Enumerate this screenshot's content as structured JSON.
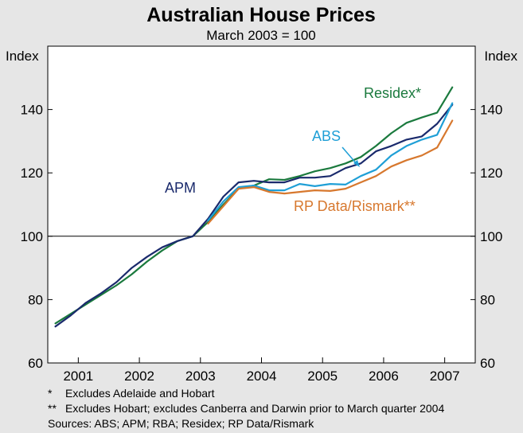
{
  "chart_data": {
    "type": "line",
    "title": "Australian House Prices",
    "subtitle": "March 2003 = 100",
    "ylabel_left": "Index",
    "ylabel_right": "Index",
    "ylim": [
      60,
      160
    ],
    "yticks": [
      60,
      80,
      100,
      120,
      140
    ],
    "xlim": [
      2000.5,
      2007.5
    ],
    "x_tick_labels": [
      "2001",
      "2002",
      "2003",
      "2004",
      "2005",
      "2006",
      "2007"
    ],
    "reference_line": 100,
    "series": [
      {
        "name": "Residex*",
        "color": "#1b7a3e",
        "x": [
          2000.625,
          2000.875,
          2001.125,
          2001.375,
          2001.625,
          2001.875,
          2002.125,
          2002.375,
          2002.625,
          2002.875,
          2003.125,
          2003.375,
          2003.625,
          2003.875,
          2004.125,
          2004.375,
          2004.625,
          2004.875,
          2005.125,
          2005.375,
          2005.625,
          2005.875,
          2006.125,
          2006.375,
          2006.625,
          2006.875,
          2007.125
        ],
        "values": [
          72.5,
          75.5,
          78.5,
          81.5,
          84.5,
          88.0,
          92.0,
          95.5,
          98.5,
          100.0,
          104.5,
          110.0,
          115.0,
          116.0,
          118.0,
          117.8,
          119.0,
          120.5,
          121.5,
          123.0,
          125.0,
          128.5,
          132.5,
          135.8,
          137.5,
          139.0,
          147.0
        ]
      },
      {
        "name": "APM",
        "color": "#1a2a6c",
        "x": [
          2000.625,
          2000.875,
          2001.125,
          2001.375,
          2001.625,
          2001.875,
          2002.125,
          2002.375,
          2002.625,
          2002.875,
          2003.125,
          2003.375,
          2003.625,
          2003.875,
          2004.125,
          2004.375,
          2004.625,
          2004.875,
          2005.125,
          2005.375,
          2005.625,
          2005.875,
          2006.125,
          2006.375,
          2006.625,
          2006.875,
          2007.125
        ],
        "values": [
          71.5,
          75.0,
          79.0,
          82.0,
          85.5,
          90.0,
          93.5,
          96.5,
          98.5,
          100.0,
          105.5,
          112.5,
          117.0,
          117.5,
          117.0,
          117.0,
          118.5,
          118.5,
          119.0,
          121.5,
          123.0,
          126.8,
          128.5,
          130.5,
          131.5,
          135.5,
          141.5
        ]
      },
      {
        "name": "ABS",
        "color": "#1f9fd6",
        "x": [
          2003.125,
          2003.375,
          2003.625,
          2003.875,
          2004.125,
          2004.375,
          2004.625,
          2004.875,
          2005.125,
          2005.375,
          2005.625,
          2005.875,
          2006.125,
          2006.375,
          2006.625,
          2006.875,
          2007.125
        ],
        "values": [
          105.0,
          111.0,
          115.5,
          116.0,
          114.5,
          114.5,
          116.5,
          115.8,
          116.5,
          116.3,
          119.0,
          121.0,
          125.5,
          128.5,
          130.5,
          132.0,
          142.0
        ]
      },
      {
        "name": "RP Data/Rismark**",
        "color": "#d7782e",
        "x": [
          2003.125,
          2003.375,
          2003.625,
          2003.875,
          2004.125,
          2004.375,
          2004.625,
          2004.875,
          2005.125,
          2005.375,
          2005.625,
          2005.875,
          2006.125,
          2006.375,
          2006.625,
          2006.875,
          2007.125
        ],
        "values": [
          104.0,
          109.5,
          115.0,
          115.5,
          114.0,
          113.5,
          114.0,
          114.5,
          114.3,
          115.0,
          117.0,
          119.0,
          122.0,
          124.0,
          125.5,
          128.0,
          136.5
        ]
      }
    ],
    "series_labels": [
      "Residex*",
      "ABS",
      "APM",
      "RP Data/Rismark**"
    ],
    "notes": [
      {
        "mark": "*",
        "text": "Excludes Adelaide and Hobart"
      },
      {
        "mark": "**",
        "text": "Excludes Hobart; excludes Canberra and Darwin prior to March quarter 2004"
      }
    ],
    "sources": "Sources: ABS; APM; RBA; Residex; RP Data/Rismark"
  }
}
